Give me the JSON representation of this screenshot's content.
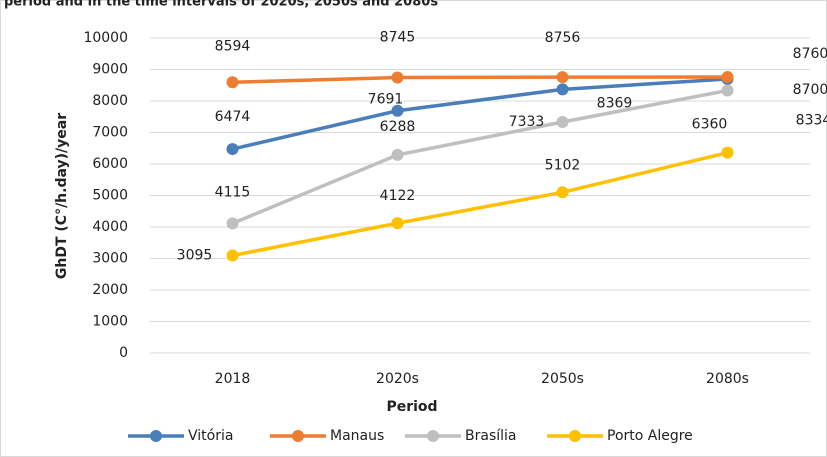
{
  "chart_data": {
    "type": "line",
    "title": "period and in the time intervals of 2020s, 2050s and 2080s",
    "x_label": "Period",
    "y_label": "GhDT (C°/h.day)/year",
    "categories": [
      "2018",
      "2020s",
      "2050s",
      "2080s"
    ],
    "series": [
      {
        "name": "Vitória",
        "color": "#4a7ebb",
        "values": [
          6474,
          7691,
          8369,
          8700
        ]
      },
      {
        "name": "Manaus",
        "color": "#ed7d31",
        "values": [
          8594,
          8745,
          8756,
          8760
        ]
      },
      {
        "name": "Brasília",
        "color": "#bfbfbf",
        "values": [
          4115,
          6288,
          7333,
          8334
        ]
      },
      {
        "name": "Porto Alegre",
        "color": "#ffc000",
        "values": [
          3095,
          4122,
          5102,
          6360
        ]
      }
    ],
    "ylim": [
      0,
      10000
    ],
    "yticks": [
      0,
      1000,
      2000,
      3000,
      4000,
      5000,
      6000,
      7000,
      8000,
      9000,
      10000
    ],
    "grid": true,
    "legend": "bottom"
  }
}
